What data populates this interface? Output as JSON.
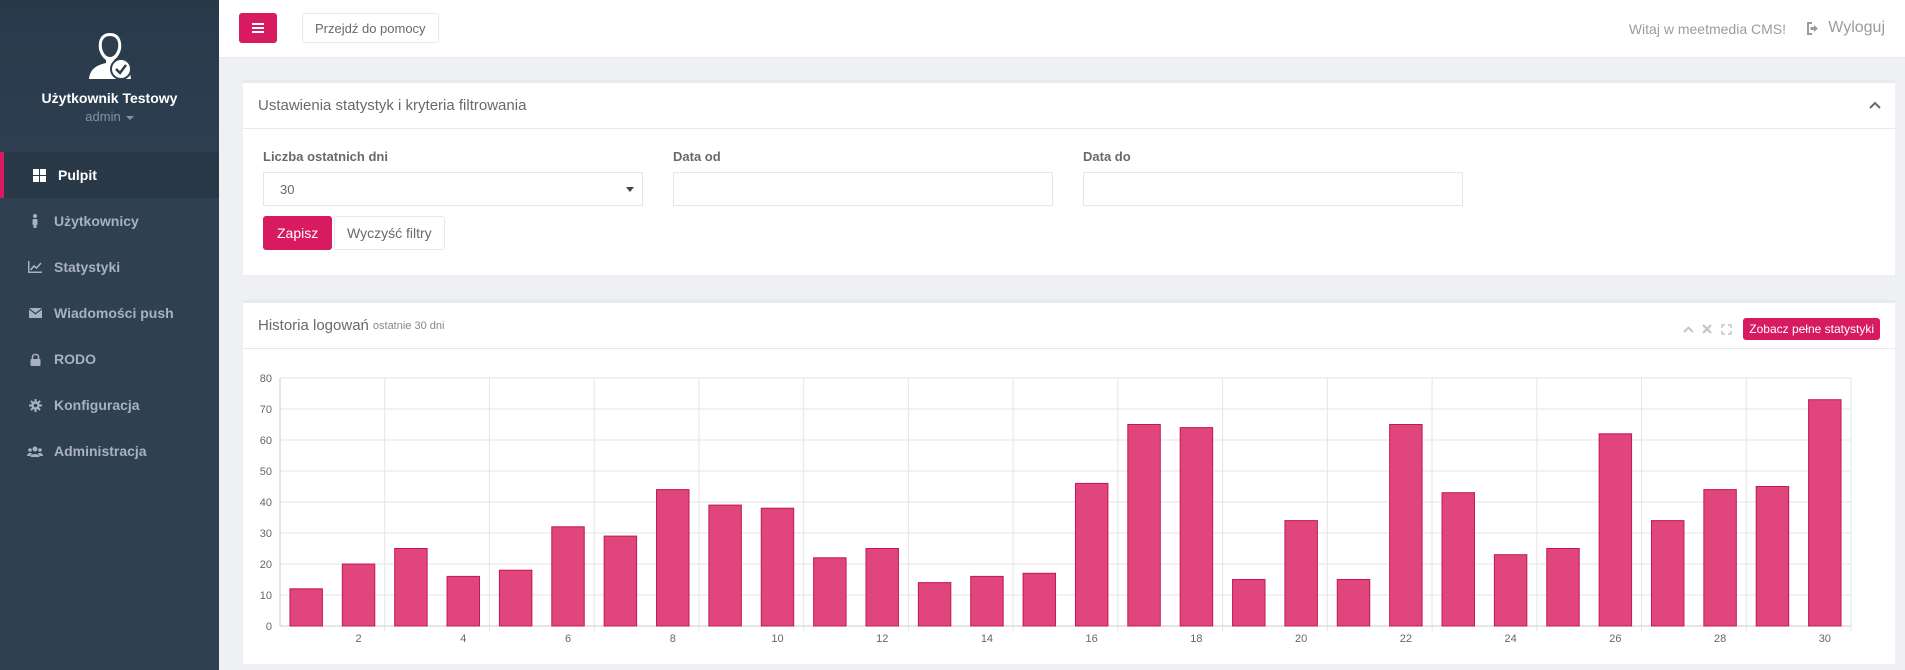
{
  "colors": {
    "accent": "#d81b60",
    "sidebar": "#2f4050",
    "bar_fill": "#e0457b",
    "bar_stroke": "#c2185b"
  },
  "user": {
    "name": "Użytkownik Testowy",
    "role": "admin"
  },
  "sidebar": {
    "items": [
      {
        "label": "Pulpit",
        "icon": "dashboard-icon",
        "active": true
      },
      {
        "label": "Użytkownicy",
        "icon": "user-icon",
        "active": false
      },
      {
        "label": "Statystyki",
        "icon": "line-chart-icon",
        "active": false
      },
      {
        "label": "Wiadomości push",
        "icon": "envelope-icon",
        "active": false
      },
      {
        "label": "RODO",
        "icon": "lock-icon",
        "active": false
      },
      {
        "label": "Konfiguracja",
        "icon": "gear-icon",
        "active": false
      },
      {
        "label": "Administracja",
        "icon": "users-icon",
        "active": false
      }
    ]
  },
  "topbar": {
    "help_label": "Przejdź do pomocy",
    "welcome": "Witaj w meetmedia CMS!",
    "logout_label": "Wyloguj"
  },
  "filters": {
    "title": "Ustawienia statystyk i kryteria filtrowania",
    "days_label": "Liczba ostatnich dni",
    "days_value": "30",
    "date_from_label": "Data od",
    "date_from_value": "",
    "date_to_label": "Data do",
    "date_to_value": "",
    "save_label": "Zapisz",
    "clear_label": "Wyczyść filtry"
  },
  "chart_panel": {
    "title": "Historia logowań",
    "subtitle": "ostatnie 30 dni",
    "full_stats_label": "Zobacz pełne statystyki"
  },
  "chart_data": {
    "type": "bar",
    "categories": [
      "1",
      "2",
      "3",
      "4",
      "5",
      "6",
      "7",
      "8",
      "9",
      "10",
      "11",
      "12",
      "13",
      "14",
      "15",
      "16",
      "17",
      "18",
      "19",
      "20",
      "21",
      "22",
      "23",
      "24",
      "25",
      "26",
      "27",
      "28",
      "29",
      "30"
    ],
    "x_tick_labels": [
      "2",
      "4",
      "6",
      "8",
      "10",
      "12",
      "14",
      "16",
      "18",
      "20",
      "22",
      "24",
      "26",
      "28",
      "30"
    ],
    "values": [
      12,
      20,
      25,
      16,
      18,
      32,
      29,
      44,
      39,
      38,
      22,
      25,
      14,
      16,
      17,
      46,
      65,
      64,
      15,
      34,
      15,
      65,
      43,
      23,
      25,
      62,
      34,
      44,
      45,
      73
    ],
    "ylim": [
      0,
      80
    ],
    "y_ticks": [
      0,
      10,
      20,
      30,
      40,
      50,
      60,
      70,
      80
    ],
    "grid": true,
    "title": "",
    "xlabel": "",
    "ylabel": ""
  }
}
